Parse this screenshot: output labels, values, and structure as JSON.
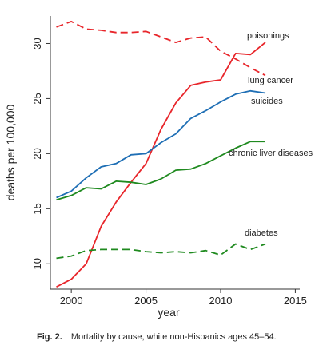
{
  "figure": {
    "caption_label": "Fig. 2.",
    "caption_text": "Mortality by cause, white non-Hispanics ages 45–54."
  },
  "colors": {
    "red": "#e8262b",
    "green": "#1f8a1f",
    "axis": "#333333"
  },
  "chart_data": {
    "type": "line",
    "title": "",
    "xlabel": "year",
    "ylabel": "deaths per 100,000",
    "xlim": [
      1998.6,
      2015.3
    ],
    "ylim": [
      7.7,
      32.5
    ],
    "xticks": [
      2000,
      2005,
      2010,
      2015
    ],
    "yticks": [
      10,
      15,
      20,
      25,
      30
    ],
    "grid": false,
    "legend": "direct labels",
    "x": [
      1999,
      2000,
      2001,
      2002,
      2003,
      2004,
      2005,
      2006,
      2007,
      2008,
      2009,
      2010,
      2011,
      2012,
      2013
    ],
    "series": [
      {
        "name": "poisonings",
        "color": "#e8262b",
        "dash": "solid",
        "values": [
          7.9,
          8.6,
          10.0,
          13.4,
          15.6,
          17.4,
          19.1,
          22.2,
          24.6,
          26.2,
          26.5,
          26.7,
          29.1,
          29.0,
          30.1
        ]
      },
      {
        "name": "lung cancer",
        "color": "#e8262b",
        "dash": "dashed",
        "values": [
          31.5,
          32.0,
          31.3,
          31.2,
          31.0,
          31.0,
          31.1,
          30.6,
          30.1,
          30.5,
          30.6,
          29.3,
          28.6,
          27.8,
          27.1
        ]
      },
      {
        "name": "suicides",
        "color": "#1f6fb5",
        "dash": "solid",
        "values": [
          16.0,
          16.6,
          17.8,
          18.8,
          19.1,
          19.9,
          20.0,
          21.0,
          21.8,
          23.2,
          23.9,
          24.7,
          25.4,
          25.7,
          25.5
        ]
      },
      {
        "name": "chronic liver diseases",
        "color": "#1f8a1f",
        "dash": "solid",
        "values": [
          15.8,
          16.2,
          16.9,
          16.8,
          17.5,
          17.4,
          17.2,
          17.7,
          18.5,
          18.6,
          19.1,
          19.8,
          20.5,
          21.1,
          21.1
        ]
      },
      {
        "name": "diabetes",
        "color": "#1f8a1f",
        "dash": "dashed",
        "values": [
          10.5,
          10.7,
          11.2,
          11.3,
          11.3,
          11.3,
          11.1,
          11.0,
          11.1,
          11.0,
          11.2,
          10.8,
          11.8,
          11.3,
          11.8
        ]
      }
    ]
  }
}
